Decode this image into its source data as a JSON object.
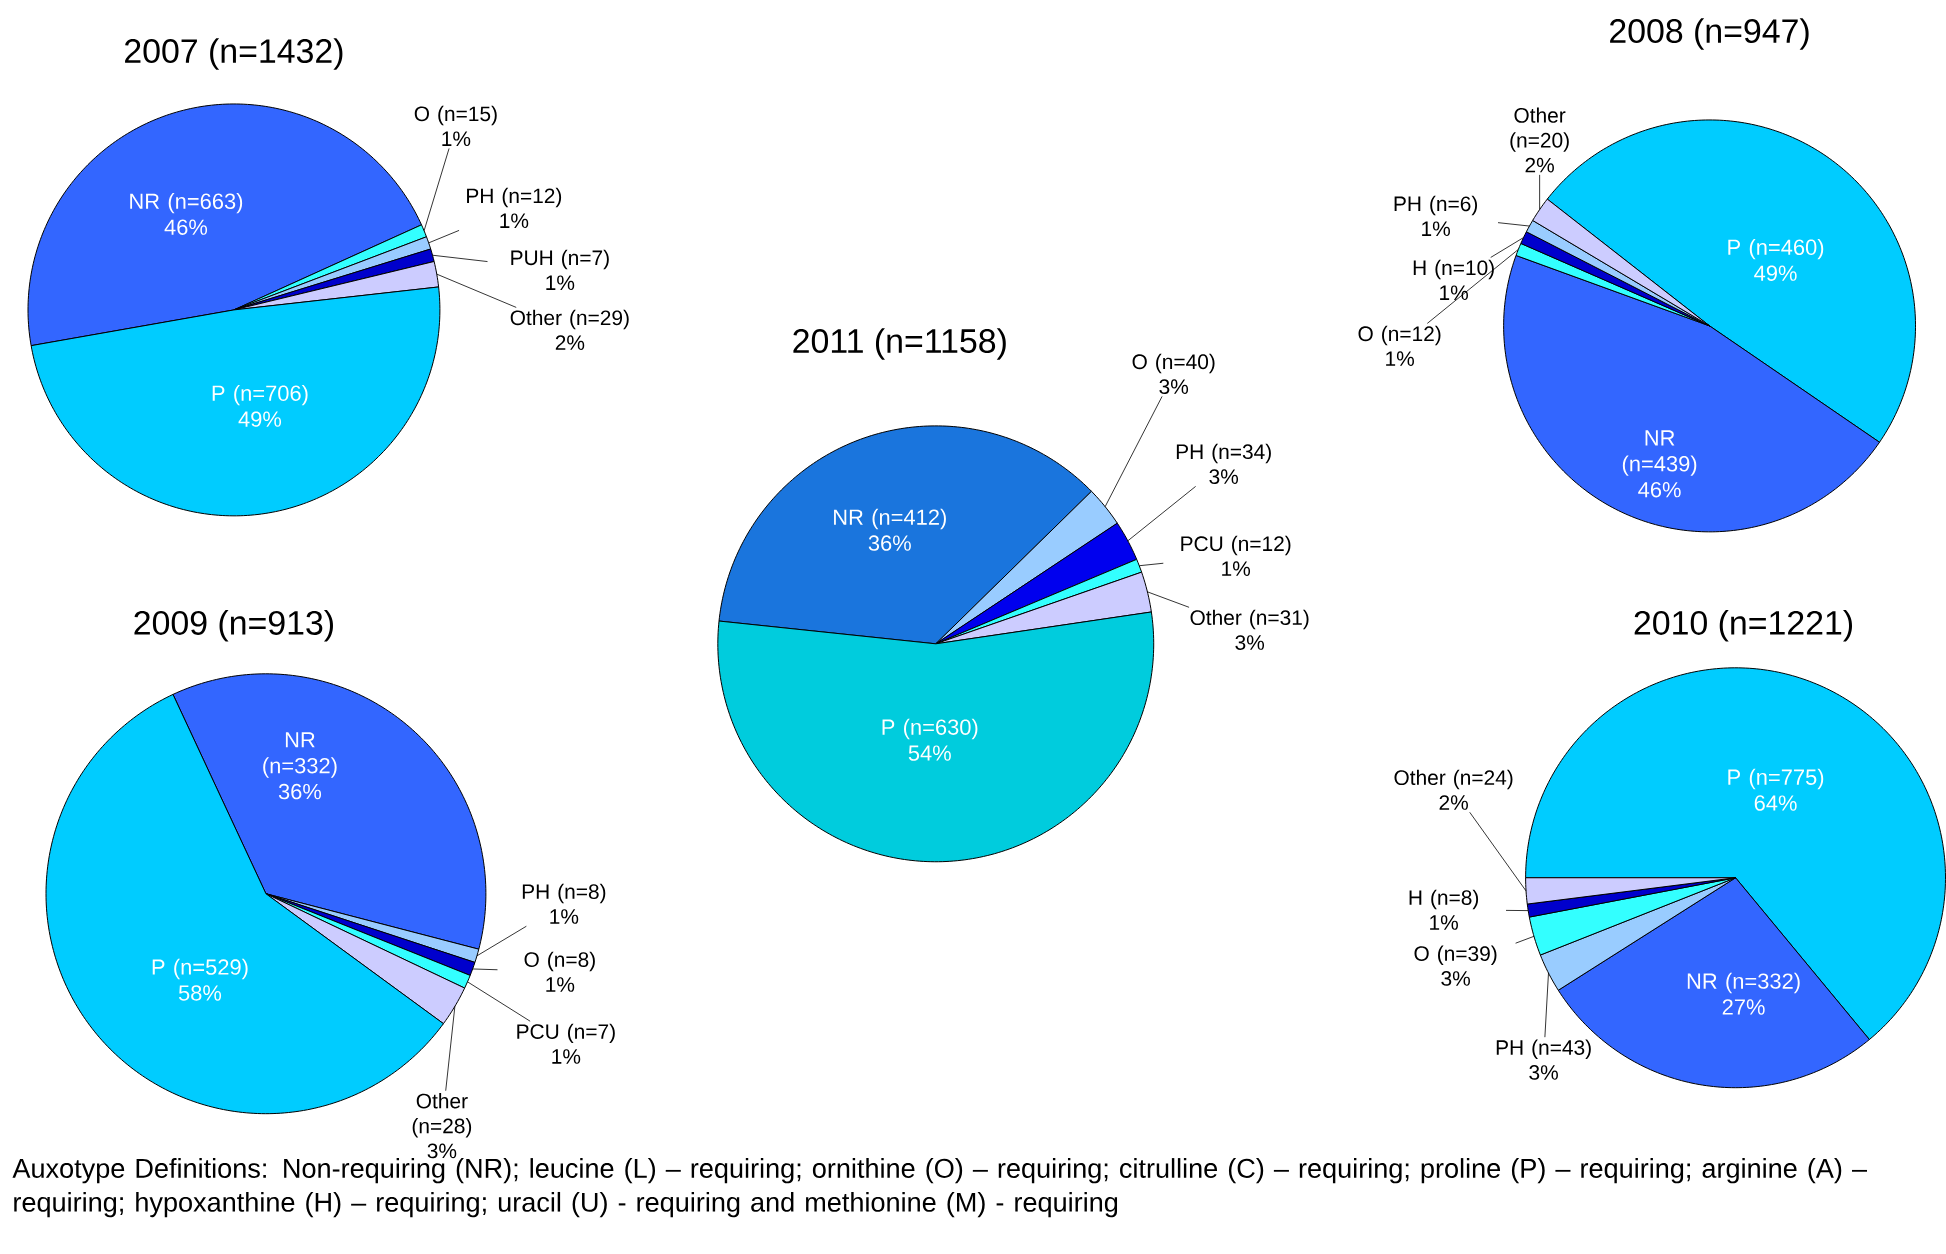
{
  "chart_data": [
    {
      "type": "pie",
      "title": "2007 (n=1432)",
      "categories": [
        "NR (n=663)",
        "O (n=15)",
        "PH (n=12)",
        "PUH (n=7)",
        "Other (n=29)",
        "P (n=706)"
      ],
      "values": [
        46,
        1,
        1,
        1,
        2,
        49
      ],
      "value_labels": [
        "46%",
        "1%",
        "1%",
        "1%",
        "2%",
        "49%"
      ],
      "colors": [
        "#3366ff",
        "#33ffff",
        "#99ccff",
        "#0000cc",
        "#ccccff",
        "#00ccff"
      ]
    },
    {
      "type": "pie",
      "title": "2008 (n=947)",
      "categories": [
        "P (n=460)",
        "NR (n=439)",
        "O (n=12)",
        "H (n=10)",
        "PH (n=6)",
        "Other (n=20)"
      ],
      "values": [
        49,
        46,
        1,
        1,
        1,
        2
      ],
      "value_labels": [
        "49%",
        "46%",
        "1%",
        "1%",
        "1%",
        "2%"
      ],
      "colors": [
        "#00ccff",
        "#3366ff",
        "#33ffff",
        "#0000cc",
        "#99ccff",
        "#ccccff"
      ]
    },
    {
      "type": "pie",
      "title": "2011 (n=1158)",
      "categories": [
        "NR (n=412)",
        "O (n=40)",
        "PH (n=34)",
        "PCU (n=12)",
        "Other (n=31)",
        "P (n=630)"
      ],
      "values": [
        36,
        3,
        3,
        1,
        3,
        54
      ],
      "value_labels": [
        "36%",
        "3%",
        "3%",
        "1%",
        "3%",
        "54%"
      ],
      "colors": [
        "#1a75dd",
        "#99ccff",
        "#0000ee",
        "#33ffff",
        "#ccccff",
        "#00ccdd"
      ]
    },
    {
      "type": "pie",
      "title": "2009 (n=913)",
      "categories": [
        "NR (n=332)",
        "PH (n=8)",
        "O (n=8)",
        "PCU (n=7)",
        "Other (n=28)",
        "P (n=529)"
      ],
      "values": [
        36,
        1,
        1,
        1,
        3,
        58
      ],
      "value_labels": [
        "36%",
        "1%",
        "1%",
        "1%",
        "3%",
        "58%"
      ],
      "colors": [
        "#3366ff",
        "#99ccff",
        "#0000cc",
        "#33ffff",
        "#ccccff",
        "#00ccff"
      ]
    },
    {
      "type": "pie",
      "title": "2010 (n=1221)",
      "categories": [
        "P (n=775)",
        "NR (n=332)",
        "PH (n=43)",
        "O (n=39)",
        "H (n=8)",
        "Other (n=24)"
      ],
      "values": [
        64,
        27,
        3,
        3,
        1,
        2
      ],
      "value_labels": [
        "64%",
        "27%",
        "3%",
        "3%",
        "1%",
        "2%"
      ],
      "colors": [
        "#00ccff",
        "#3366ff",
        "#99ccff",
        "#33ffff",
        "#0000cc",
        "#ccccff"
      ]
    },
    {
      "type": "other",
      "annotations": [
        "Auxotype Definitions: Non-requiring (NR); leucine (L) – requiring; ornithine (O) – requiring; citrulline (C) – requiring; proline (P) – requiring; arginine (A) – requiring; hypoxanthine (H) – requiring; uracil (U) - requiring and methionine (M) - requiring"
      ]
    }
  ]
}
